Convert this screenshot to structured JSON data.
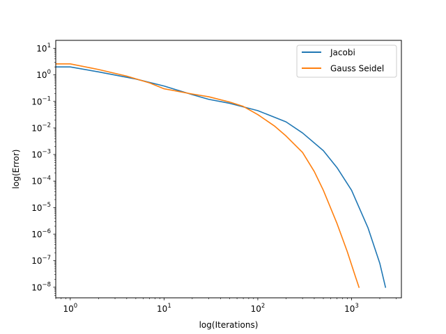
{
  "chart_data": {
    "type": "line",
    "title": "",
    "xlabel": "log(Iterations)",
    "ylabel": "log(Error)",
    "xscale": "log",
    "yscale": "log",
    "xlim": [
      0.7,
      3400
    ],
    "ylim": [
      4e-09,
      20
    ],
    "xticks": [
      {
        "base": "10",
        "exp": "0",
        "value": 1
      },
      {
        "base": "10",
        "exp": "1",
        "value": 10
      },
      {
        "base": "10",
        "exp": "2",
        "value": 100
      },
      {
        "base": "10",
        "exp": "3",
        "value": 1000
      }
    ],
    "yticks": [
      {
        "base": "10",
        "exp": "1",
        "value": 10
      },
      {
        "base": "10",
        "exp": "0",
        "value": 1
      },
      {
        "base": "10",
        "exp": "−1",
        "value": 0.1
      },
      {
        "base": "10",
        "exp": "−2",
        "value": 0.01
      },
      {
        "base": "10",
        "exp": "−3",
        "value": 0.001
      },
      {
        "base": "10",
        "exp": "−4",
        "value": 0.0001
      },
      {
        "base": "10",
        "exp": "−5",
        "value": 1e-05
      },
      {
        "base": "10",
        "exp": "−6",
        "value": 1e-06
      },
      {
        "base": "10",
        "exp": "−7",
        "value": 1e-07
      },
      {
        "base": "10",
        "exp": "−8",
        "value": 1e-08
      }
    ],
    "grid": false,
    "legend_position": "top-right",
    "series": [
      {
        "name": "Jacobi",
        "color": "#1f77b4",
        "points": [
          [
            0.7,
            2.0
          ],
          [
            1,
            2.0
          ],
          [
            2,
            1.3
          ],
          [
            5,
            0.7
          ],
          [
            10,
            0.38
          ],
          [
            20,
            0.18
          ],
          [
            30,
            0.12
          ],
          [
            50,
            0.085
          ],
          [
            100,
            0.045
          ],
          [
            200,
            0.017
          ],
          [
            300,
            0.0065
          ],
          [
            500,
            0.0014
          ],
          [
            700,
            0.00032
          ],
          [
            1000,
            4.5e-05
          ],
          [
            1500,
            1.7e-06
          ],
          [
            2000,
            8e-08
          ],
          [
            2300,
            1e-08
          ]
        ]
      },
      {
        "name": "Gauss Seidel",
        "color": "#ff7f0e",
        "points": [
          [
            0.7,
            2.6
          ],
          [
            1,
            2.6
          ],
          [
            2,
            1.6
          ],
          [
            4,
            0.9
          ],
          [
            7,
            0.5
          ],
          [
            10,
            0.3
          ],
          [
            20,
            0.19
          ],
          [
            30,
            0.15
          ],
          [
            50,
            0.095
          ],
          [
            70,
            0.065
          ],
          [
            100,
            0.032
          ],
          [
            150,
            0.012
          ],
          [
            200,
            0.005
          ],
          [
            300,
            0.0012
          ],
          [
            400,
            0.00023
          ],
          [
            500,
            4.5e-05
          ],
          [
            700,
            2.5e-06
          ],
          [
            900,
            2.2e-07
          ],
          [
            1100,
            2.5e-08
          ],
          [
            1200,
            1e-08
          ]
        ]
      }
    ]
  }
}
